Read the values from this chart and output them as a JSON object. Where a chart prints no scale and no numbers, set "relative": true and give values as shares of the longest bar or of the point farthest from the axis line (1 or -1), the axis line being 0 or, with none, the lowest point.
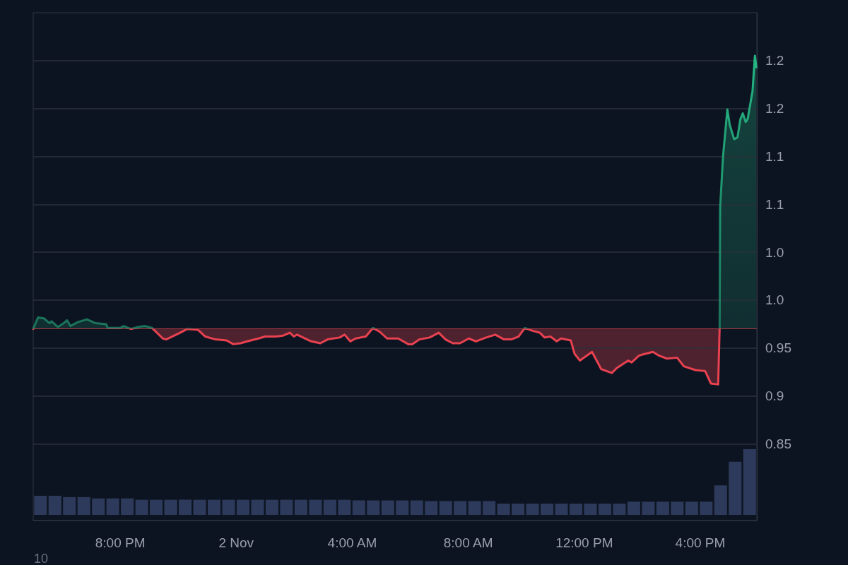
{
  "chart_data": [
    {
      "type": "line",
      "annotations": [
        "10"
      ],
      "xlim": [
        "--11-01T17:00",
        "--11-02T17:57"
      ],
      "xticks": [
        {
          "value": "--11-01T20:00",
          "label": "8:00 PM"
        },
        {
          "value": "--11-02T00:00",
          "label": "2 Nov"
        },
        {
          "value": "--11-02T04:00",
          "label": "4:00 AM"
        },
        {
          "value": "--11-02T08:00",
          "label": "8:00 AM"
        },
        {
          "value": "--11-02T12:00",
          "label": "12:00 PM"
        },
        {
          "value": "--11-02T16:00",
          "label": "4:00 PM"
        }
      ],
      "ylim": [
        0.77,
        1.3
      ],
      "yticks": [
        0.85,
        0.9,
        0.95,
        {
          "value": 1.0,
          "label": "1.0"
        },
        {
          "value": 1.05,
          "label": "1.0"
        },
        {
          "value": 1.1,
          "label": "1.1"
        },
        {
          "value": 1.15,
          "label": "1.1"
        },
        {
          "value": 1.2,
          "label": "1.2"
        },
        {
          "value": 1.25,
          "label": "1.2"
        }
      ],
      "grid": "y",
      "marker": "none",
      "ref_lines": [
        {
          "axis": "y",
          "value": 0.97,
          "color": "#e8414f"
        }
      ],
      "series": [
        {
          "type": "area",
          "color": "#26c28a",
          "x": [
            "--11-01T17:00",
            "--11-01T17:10",
            "--11-01T17:22",
            "--11-01T17:34",
            "--11-01T17:38",
            "--11-01T17:51",
            "--11-01T18:03",
            "--11-01T18:10",
            "--11-01T18:17",
            "--11-01T18:32",
            "--11-01T18:51",
            "--11-01T19:09",
            "--11-01T19:31",
            "--11-01T19:34",
            "--11-01T20:00",
            "--11-01T20:07",
            "--11-01T20:22",
            "--11-01T20:37",
            "--11-01T20:51",
            "--11-01T21:06",
            "--11-01T21:28",
            "--11-01T21:35",
            "--11-01T22:04",
            "--11-01T22:19",
            "--11-01T22:41",
            "--11-01T22:56",
            "--11-01T23:17",
            "--11-01T23:40",
            "--11-01T23:54",
            "--11-02T00:09",
            "--11-02T00:23",
            "--11-02T00:46",
            "--11-02T01:00",
            "--11-02T01:22",
            "--11-02T01:37",
            "--11-02T01:51",
            "--11-02T01:59",
            "--11-02T02:06",
            "--11-02T02:35",
            "--11-02T02:54",
            "--11-02T03:09",
            "--11-02T03:34",
            "--11-02T03:44",
            "--11-02T03:56",
            "--11-02T04:07",
            "--11-02T04:28",
            "--11-02T04:43",
            "--11-02T04:57",
            "--11-02T05:12",
            "--11-02T05:35",
            "--11-02T05:56",
            "--11-02T06:04",
            "--11-02T06:19",
            "--11-02T06:40",
            "--11-02T06:59",
            "--11-02T07:13",
            "--11-02T07:28",
            "--11-02T07:43",
            "--11-02T08:01",
            "--11-02T08:16",
            "--11-02T08:37",
            "--11-02T08:56",
            "--11-02T09:14",
            "--11-02T09:29",
            "--11-02T09:44",
            "--11-02T09:57",
            "--11-02T10:13",
            "--11-02T10:28",
            "--11-02T10:38",
            "--11-02T10:50",
            "--11-02T11:03",
            "--11-02T11:12",
            "--11-02T11:32",
            "--11-02T11:40",
            "--11-02T11:51",
            "--11-02T12:16",
            "--11-02T12:35",
            "--11-02T12:57",
            "--11-02T13:07",
            "--11-02T13:31",
            "--11-02T13:38",
            "--11-02T13:53",
            "--11-02T13:59",
            "--11-02T14:22",
            "--11-02T14:35",
            "--11-02T14:51",
            "--11-02T15:12",
            "--11-02T15:26",
            "--11-02T15:50",
            "--11-02T16:10",
            "--11-02T16:22",
            "--11-02T16:37",
            "--11-02T16:40",
            "--11-02T16:41",
            "--11-02T16:47",
            "--11-02T16:56",
            "--11-02T17:01",
            "--11-02T17:10",
            "--11-02T17:17",
            "--11-02T17:23",
            "--11-02T17:28",
            "--11-02T17:34",
            "--11-02T17:38",
            "--11-02T17:48",
            "--11-02T17:53",
            "--11-02T17:56"
          ],
          "values": [
            0.97,
            0.982,
            0.981,
            0.976,
            0.978,
            0.972,
            0.976,
            0.979,
            0.973,
            0.977,
            0.98,
            0.976,
            0.975,
            0.971,
            0.971,
            0.973,
            0.97,
            0.972,
            0.973,
            0.971,
            0.96,
            0.959,
            0.966,
            0.97,
            0.969,
            0.962,
            0.959,
            0.958,
            0.954,
            0.955,
            0.957,
            0.96,
            0.962,
            0.962,
            0.963,
            0.966,
            0.962,
            0.964,
            0.957,
            0.955,
            0.959,
            0.961,
            0.964,
            0.957,
            0.96,
            0.962,
            0.971,
            0.967,
            0.96,
            0.96,
            0.954,
            0.954,
            0.959,
            0.961,
            0.966,
            0.959,
            0.955,
            0.955,
            0.96,
            0.957,
            0.961,
            0.964,
            0.959,
            0.959,
            0.962,
            0.971,
            0.968,
            0.966,
            0.961,
            0.962,
            0.957,
            0.96,
            0.958,
            0.944,
            0.937,
            0.946,
            0.928,
            0.924,
            0.929,
            0.937,
            0.935,
            0.942,
            0.943,
            0.946,
            0.942,
            0.939,
            0.94,
            0.931,
            0.927,
            0.926,
            0.913,
            0.912,
            0.971,
            1.096,
            1.15,
            1.199,
            1.183,
            1.168,
            1.17,
            1.189,
            1.195,
            1.186,
            1.189,
            1.218,
            1.255,
            1.243
          ]
        }
      ]
    },
    {
      "type": "bar",
      "relative": true,
      "color": "#2e3a5c",
      "categories": [
        null,
        null,
        null,
        null,
        null,
        null,
        null,
        null,
        null,
        null,
        null,
        null,
        null,
        null,
        null,
        null,
        null,
        null,
        null,
        null,
        null,
        null,
        null,
        null,
        null,
        null,
        null,
        null,
        null,
        null,
        null,
        null,
        null,
        null,
        null,
        null,
        null,
        null,
        null,
        null,
        null,
        null,
        null,
        null,
        null,
        null,
        null,
        null,
        null,
        null
      ],
      "values": [
        0.29,
        0.29,
        0.27,
        0.27,
        0.25,
        0.25,
        0.25,
        0.23,
        0.23,
        0.23,
        0.23,
        0.23,
        0.23,
        0.23,
        0.23,
        0.23,
        0.23,
        0.23,
        0.23,
        0.23,
        0.23,
        0.23,
        0.22,
        0.22,
        0.22,
        0.22,
        0.22,
        0.21,
        0.21,
        0.21,
        0.21,
        0.21,
        0.17,
        0.17,
        0.17,
        0.17,
        0.17,
        0.17,
        0.17,
        0.17,
        0.17,
        0.2,
        0.2,
        0.2,
        0.2,
        0.2,
        0.2,
        0.45,
        0.81,
        1
      ]
    }
  ]
}
